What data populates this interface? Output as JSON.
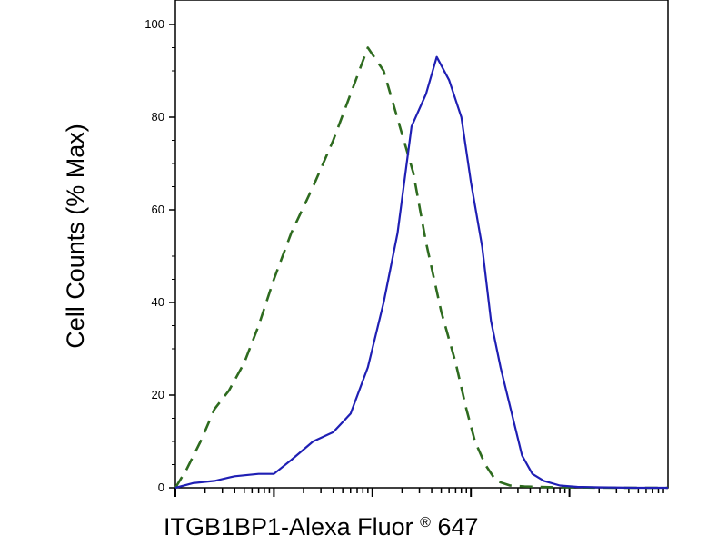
{
  "chart_data": {
    "type": "line",
    "xlabel": "ITGB1BP1-Alexa Fluor",
    "xlabel_superscript": "®",
    "xlabel_suffix": " 647",
    "ylabel": "Cell Counts (% Max)",
    "y_tick_labels": [
      "0",
      "20",
      "40",
      "60",
      "80",
      "100"
    ],
    "ylim": [
      0,
      100
    ],
    "x_scale": "log",
    "xlim": [
      0.1,
      10000
    ],
    "x_tick_labels": [],
    "grid": false,
    "legend": "none",
    "series": [
      {
        "color": "#2e6b1f",
        "style": "dashed",
        "x": [
          0.1,
          0.13,
          0.18,
          0.25,
          0.35,
          0.5,
          0.7,
          1.0,
          1.5,
          2.5,
          4,
          6,
          9,
          13,
          19,
          26,
          35,
          50,
          70,
          90,
          110,
          140,
          180,
          250,
          350,
          500,
          700,
          1000,
          1500,
          3000,
          5000,
          10000
        ],
        "y": [
          0,
          4,
          10,
          17,
          21,
          27,
          35,
          45,
          55,
          65,
          75,
          85,
          95,
          90,
          78,
          68,
          53,
          38,
          27,
          17,
          10,
          5,
          1.5,
          0.5,
          0.3,
          0.2,
          0.1,
          0.1,
          0.05,
          0,
          0,
          0
        ]
      },
      {
        "color": "#1f1fb4",
        "style": "solid",
        "x": [
          0.1,
          0.15,
          0.25,
          0.4,
          0.7,
          1.0,
          1.5,
          2.5,
          4,
          6,
          9,
          13,
          18,
          25,
          35,
          45,
          60,
          80,
          100,
          130,
          160,
          200,
          260,
          330,
          420,
          550,
          800,
          1200,
          2000,
          5000,
          10000
        ],
        "y": [
          0,
          1,
          1.5,
          2.5,
          3,
          3,
          6,
          10,
          12,
          16,
          26,
          40,
          55,
          78,
          85,
          93,
          88,
          80,
          66,
          52,
          36,
          26,
          16,
          7,
          3,
          1.5,
          0.5,
          0.2,
          0.1,
          0,
          0
        ]
      }
    ]
  }
}
